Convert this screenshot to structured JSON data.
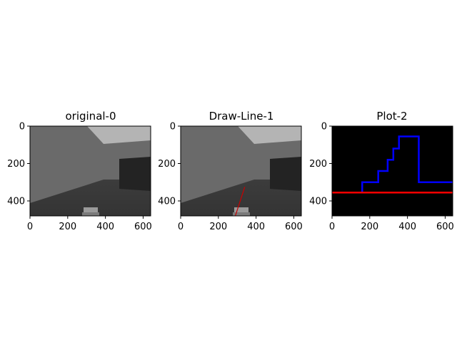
{
  "figure": {
    "background": "#ffffff"
  },
  "chart_data": [
    {
      "type": "image",
      "title": "original-0",
      "xlim": [
        0,
        640
      ],
      "ylim": [
        480,
        0
      ],
      "xticks": [
        0,
        200,
        400,
        600
      ],
      "yticks": [
        0,
        200,
        400
      ],
      "scene": "grayscale 3D corridor render: dark floor, mid-gray left wall and back wall, light ceiling at top-right, dark block on right wall, small bright object at bottom center",
      "annotations": []
    },
    {
      "type": "image",
      "title": "Draw-Line-1",
      "xlim": [
        0,
        640
      ],
      "ylim": [
        480,
        0
      ],
      "xticks": [
        0,
        200,
        400,
        600
      ],
      "yticks": [
        0,
        200,
        400
      ],
      "scene": "same corridor render with a red line drawn",
      "annotations": [
        {
          "kind": "line",
          "color": "#cc0000",
          "x": [
            290,
            340
          ],
          "y": [
            480,
            325
          ]
        }
      ]
    },
    {
      "type": "line",
      "title": "Plot-2",
      "background": "#000000",
      "xlim": [
        0,
        640
      ],
      "ylim": [
        480,
        0
      ],
      "xticks": [
        0,
        200,
        400,
        600
      ],
      "yticks": [
        0,
        200,
        400
      ],
      "series": [
        {
          "color": "#0000ff",
          "x": [
            160,
            160,
            245,
            245,
            295,
            295,
            325,
            325,
            355,
            355,
            460,
            460,
            640
          ],
          "y": [
            355,
            300,
            300,
            240,
            240,
            180,
            180,
            120,
            120,
            55,
            55,
            300,
            300
          ]
        },
        {
          "color": "#ff0000",
          "x": [
            0,
            640
          ],
          "y": [
            355,
            355
          ]
        }
      ]
    }
  ]
}
